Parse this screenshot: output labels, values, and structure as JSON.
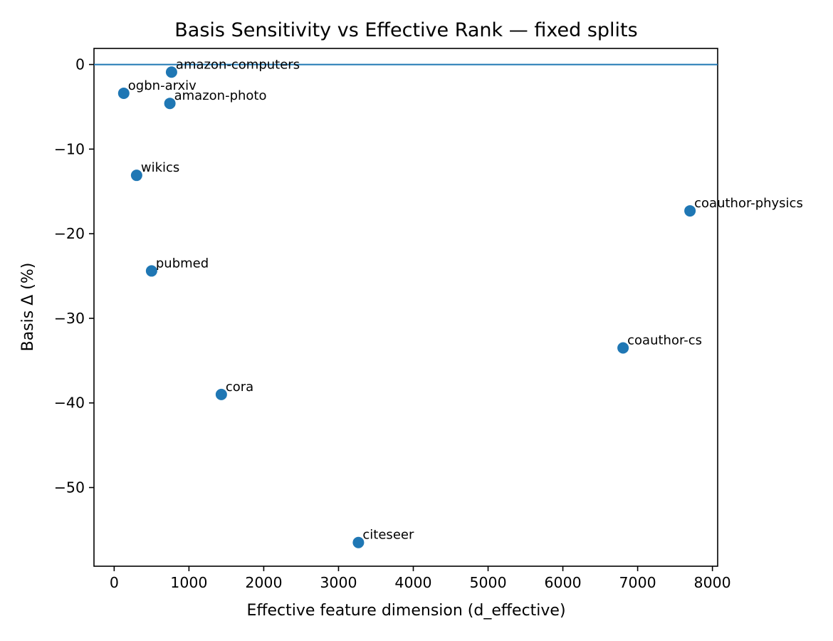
{
  "chart_data": {
    "type": "scatter",
    "title": "Basis Sensitivity vs Effective Rank — fixed splits",
    "xlabel": "Effective feature dimension (d_effective)",
    "ylabel": "Basis Δ (%)",
    "xlim": [
      -270,
      8070
    ],
    "ylim": [
      -59.3,
      1.9
    ],
    "xticks": [
      0,
      1000,
      2000,
      3000,
      4000,
      5000,
      6000,
      7000,
      8000
    ],
    "xtick_labels": [
      "0",
      "1000",
      "2000",
      "3000",
      "4000",
      "5000",
      "6000",
      "7000",
      "8000"
    ],
    "yticks": [
      0,
      -10,
      -20,
      -30,
      -40,
      -50
    ],
    "ytick_labels": [
      "0",
      "−10",
      "−20",
      "−30",
      "−40",
      "−50"
    ],
    "reference_line": {
      "y": 0
    },
    "grid": false,
    "marker_color": "#1f77b4",
    "points": [
      {
        "label": "amazon-computers",
        "x": 767,
        "y": -0.9
      },
      {
        "label": "ogbn-arxiv",
        "x": 128,
        "y": -3.4
      },
      {
        "label": "amazon-photo",
        "x": 745,
        "y": -4.6
      },
      {
        "label": "wikics",
        "x": 300,
        "y": -13.1
      },
      {
        "label": "coauthor-physics",
        "x": 7700,
        "y": -17.3
      },
      {
        "label": "pubmed",
        "x": 500,
        "y": -24.4
      },
      {
        "label": "coauthor-cs",
        "x": 6805,
        "y": -33.5
      },
      {
        "label": "cora",
        "x": 1433,
        "y": -39.0
      },
      {
        "label": "citeseer",
        "x": 3266,
        "y": -56.5
      }
    ]
  }
}
